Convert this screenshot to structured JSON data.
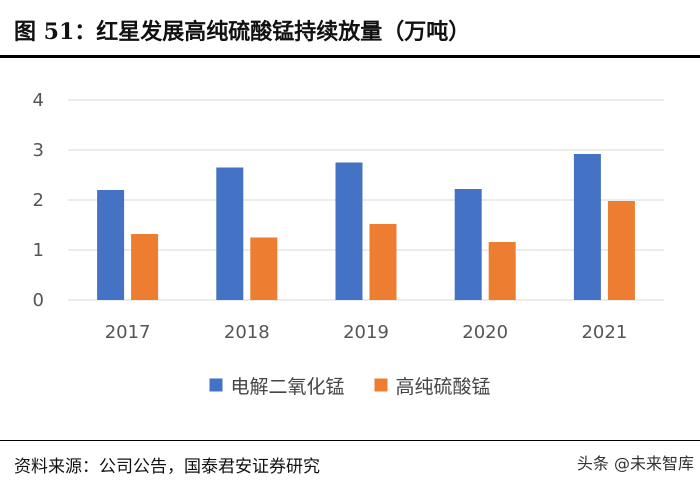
{
  "figure": {
    "title": "图 51：红星发展高纯硫酸锰持续放量（万吨）",
    "source": "资料来源：公司公告，国泰君安证券研究",
    "watermark": "头条 @未来智库"
  },
  "chart_data": {
    "type": "bar",
    "title": "红星发展高纯硫酸锰持续放量（万吨）",
    "categories": [
      "2017",
      "2018",
      "2019",
      "2020",
      "2021"
    ],
    "series": [
      {
        "name": "电解二氧化锰",
        "values": [
          2.2,
          2.65,
          2.75,
          2.22,
          2.92
        ],
        "color": "#4472C4"
      },
      {
        "name": "高纯硫酸锰",
        "values": [
          1.32,
          1.25,
          1.52,
          1.16,
          1.98
        ],
        "color": "#ED7D31"
      }
    ],
    "ylim": [
      0,
      4
    ],
    "yticks": [
      "0",
      "1",
      "2",
      "3",
      "4"
    ],
    "grid": true,
    "legend": "bottom",
    "xlabel": "",
    "ylabel": ""
  }
}
